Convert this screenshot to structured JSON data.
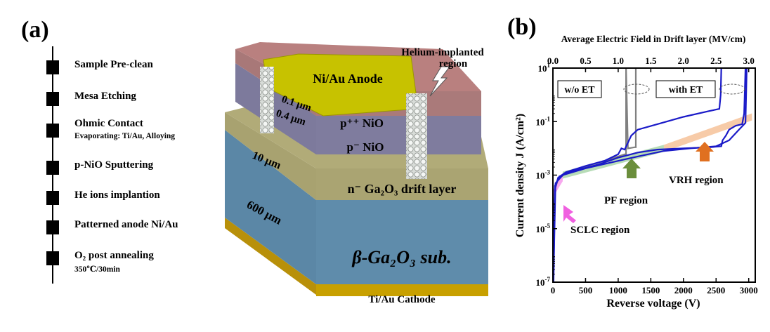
{
  "panel_a": {
    "label": "(a)",
    "process_steps": [
      {
        "title": "Sample Pre-clean",
        "detail": ""
      },
      {
        "title": "Mesa Etching",
        "detail": ""
      },
      {
        "title": "Ohmic Contact",
        "detail": "Evaporating: Ti/Au, Alloying"
      },
      {
        "title": "p-NiO Sputtering",
        "detail": ""
      },
      {
        "title": "He ions implantion",
        "detail": ""
      },
      {
        "title": "Patterned anode Ni/Au",
        "detail": ""
      },
      {
        "title": "O₂ post annealing",
        "detail": "350℃/30min"
      }
    ],
    "device": {
      "anode": "Ni/Au Anode",
      "implant_label_1": "Helium-implanted",
      "implant_label_2": "region",
      "t_pp_nio": "0.1 μm",
      "t_p_nio": "0.4 μm",
      "t_drift": "10 μm",
      "t_sub": "600 μm",
      "layer_pp_nio": "p⁺⁺ NiO",
      "layer_p_nio": "p⁻ NiO",
      "layer_drift": "n⁻ Ga₂O₃ drift layer",
      "layer_sub": "β-Ga₂O₃ sub.",
      "cathode": "Ti/Au Cathode",
      "colors": {
        "top": "#b9807f",
        "pp_nio": "#a87878",
        "p_nio": "#7d7a9c",
        "drift": "#a8a270",
        "sub": "#5b87a6",
        "anode": "#c7c200",
        "cathode": "#c8a000"
      }
    }
  },
  "panel_b": {
    "label": "(b)",
    "top_axis_title": "Average Electric Field in Drift layer (MV/cm)",
    "x_axis_title": "Reverse voltage (V)",
    "y_axis_title": "Current density J (A/cm²)",
    "legend_wo": "w/o ET",
    "legend_with": "with ET",
    "regions": {
      "sclc": "SCLC region",
      "pf": "PF region",
      "vrh": "VRH region"
    },
    "region_colors": {
      "sclc": "#f060e0",
      "pf": "#6b8e3c",
      "vrh": "#e07020"
    }
  },
  "chart_data": {
    "type": "line",
    "x_axis": {
      "label": "Reverse voltage (V)",
      "range": [
        0,
        3100
      ],
      "ticks": [
        0,
        500,
        1000,
        1500,
        2000,
        2500,
        3000
      ]
    },
    "top_axis": {
      "label": "Average Electric Field in Drift layer (MV/cm)",
      "range": [
        0.0,
        3.1
      ],
      "ticks": [
        0.0,
        0.5,
        1.0,
        1.5,
        2.0,
        2.5,
        3.0
      ]
    },
    "y_axis": {
      "label": "Current density J (A/cm²)",
      "scale": "log",
      "range": [
        1e-07,
        10
      ],
      "ticks": [
        "10^-7",
        "10^-5",
        "10^-3",
        "10^-1",
        "10^1"
      ]
    },
    "series": [
      {
        "color": "#808080",
        "x": [
          10,
          30,
          80,
          200,
          400,
          600,
          800,
          1000,
          1100,
          1120,
          1120,
          1150,
          1250,
          1270,
          1270
        ],
        "y": [
          2e-05,
          0.0003,
          0.0007,
          0.0012,
          0.0018,
          0.0025,
          0.0035,
          0.005,
          0.006,
          0.006,
          10,
          0.01,
          0.011,
          0.011,
          10
        ]
      },
      {
        "color": "#1a1ac8",
        "x": [
          10,
          30,
          80,
          200,
          500,
          800,
          1000,
          1050,
          1100,
          1200,
          1300,
          1600,
          2000,
          2400,
          2550,
          2570,
          2580
        ],
        "y": [
          1e-07,
          0.0003,
          0.0008,
          0.0013,
          0.0022,
          0.0035,
          0.006,
          0.01,
          0.009,
          0.03,
          0.05,
          0.08,
          0.15,
          0.25,
          0.3,
          1.0,
          10
        ]
      },
      {
        "color": "#1a1ac8",
        "x": [
          10,
          30,
          100,
          300,
          700,
          1000,
          1300,
          1600,
          2000,
          2400,
          2580,
          2600,
          2650,
          2700,
          2800,
          2900,
          2930,
          2950
        ],
        "y": [
          3e-07,
          0.0004,
          0.0009,
          0.0014,
          0.0025,
          0.0045,
          0.007,
          0.009,
          0.01,
          0.011,
          0.012,
          0.02,
          0.03,
          0.05,
          0.07,
          0.08,
          0.2,
          10
        ]
      },
      {
        "color": "#1a1ac8",
        "x": [
          10,
          40,
          150,
          500,
          900,
          1300,
          1700,
          2100,
          2500,
          2700,
          2850,
          2950,
          2970
        ],
        "y": [
          2e-07,
          0.0005,
          0.001,
          0.0018,
          0.003,
          0.005,
          0.008,
          0.01,
          0.012,
          0.02,
          0.05,
          0.09,
          10
        ]
      }
    ],
    "bands": [
      {
        "name": "SCLC region",
        "color": "#f060e0",
        "x": [
          0,
          150
        ],
        "y_center": [
          0.0002,
          0.0008
        ]
      },
      {
        "name": "PF region",
        "color": "#7bc07b",
        "x": [
          150,
          1700
        ],
        "y_center": [
          0.001,
          0.01
        ]
      },
      {
        "name": "VRH region",
        "color": "#f0a060",
        "x": [
          1700,
          3050
        ],
        "y_center": [
          0.01,
          0.15
        ]
      }
    ],
    "annotations": [
      "w/o ET",
      "with ET",
      "SCLC region",
      "PF region",
      "VRH region"
    ]
  }
}
